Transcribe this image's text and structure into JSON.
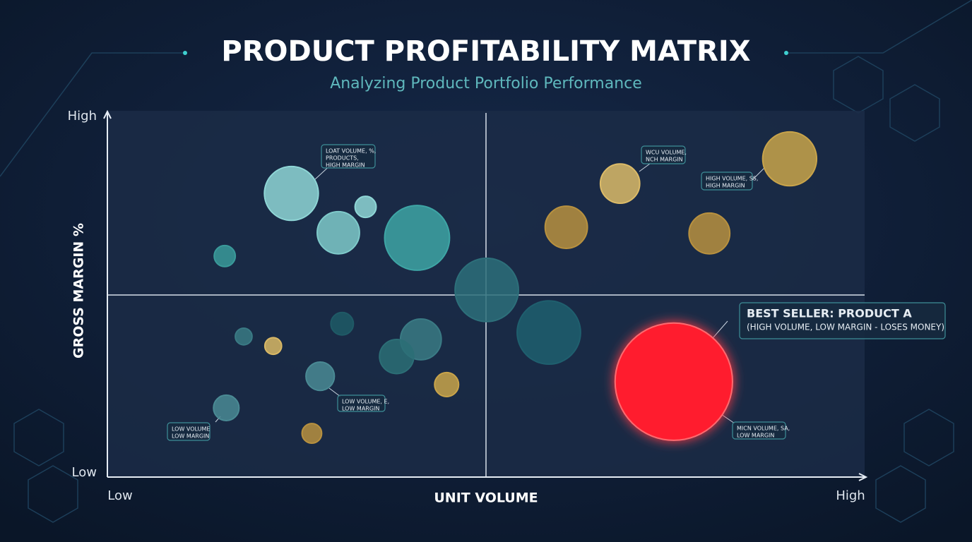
{
  "chart_data": {
    "type": "bubble",
    "title": "PRODUCT PROFITABILITY MATRIX",
    "subtitle": "Analyzing Product Portfolio Performance",
    "x_label": "UNIT VOLUME",
    "y_label": "GROSS MARGIN %",
    "xlim": [
      0,
      100
    ],
    "ylim": [
      0,
      100
    ],
    "xticks": [
      {
        "value": 0,
        "label": "Low"
      },
      {
        "value": 100,
        "label": "High"
      }
    ],
    "yticks": [
      {
        "value": 0,
        "label": "Low"
      },
      {
        "value": 100,
        "label": "High"
      }
    ],
    "x": [
      24.3,
      30.5,
      34.1,
      40.9,
      15.5,
      50.1,
      67.7,
      60.6,
      90.1,
      79.5,
      58.3,
      74.8,
      31.0,
      18.0,
      21.9,
      41.4,
      38.2,
      28.1,
      44.8,
      15.7,
      27.0
    ],
    "y": [
      77.9,
      67.1,
      74.2,
      65.7,
      60.7,
      51.4,
      80.6,
      68.6,
      87.4,
      66.9,
      39.7,
      26.2,
      42.1,
      38.6,
      36.0,
      37.8,
      33.1,
      27.7,
      25.4,
      19.0,
      12.0
    ],
    "sizes": [
      7.4,
      5.8,
      2.9,
      8.9,
      2.9,
      8.7,
      5.4,
      5.8,
      7.4,
      5.6,
      8.7,
      16.1,
      3.1,
      2.3,
      2.3,
      5.6,
      4.7,
      3.9,
      3.3,
      3.5,
      2.7
    ],
    "colors": [
      "#8fd6d6",
      "#7fcaca",
      "#8fd6d6",
      "#3ea5a5",
      "#3a9a9a",
      "#2d6f7a",
      "#dcbb68",
      "#b8913f",
      "#c9a44a",
      "#b8913f",
      "#1f5f6e",
      "#ff1f2e",
      "#1f5a66",
      "#3a7a84",
      "#d9b865",
      "#3a7a84",
      "#2c6e76",
      "#4a8a94",
      "#c9a44a",
      "#4a8a94",
      "#b8913f"
    ],
    "annotations": [
      [
        "LOAT VOLUME, %,",
        "PRODUCTS,",
        "HIGH MARGIN"
      ],
      [
        "WCU VOLUME,",
        "NCH MARGIN"
      ],
      [
        "HIGH VOLUME, SS,",
        "HIGH MARGIN"
      ],
      [
        "BEST SELLER: PRODUCT A",
        "(HIGH VOLUME, LOW MARGIN - LOSES MONEY)"
      ],
      [
        "LOW VOLUME",
        "LOW MARGIN"
      ],
      [
        "LOW VOLUME, E,",
        "LOW MARGIN"
      ],
      [
        "MICN VOLUME, SA,",
        "LOW MARGIN"
      ]
    ]
  }
}
